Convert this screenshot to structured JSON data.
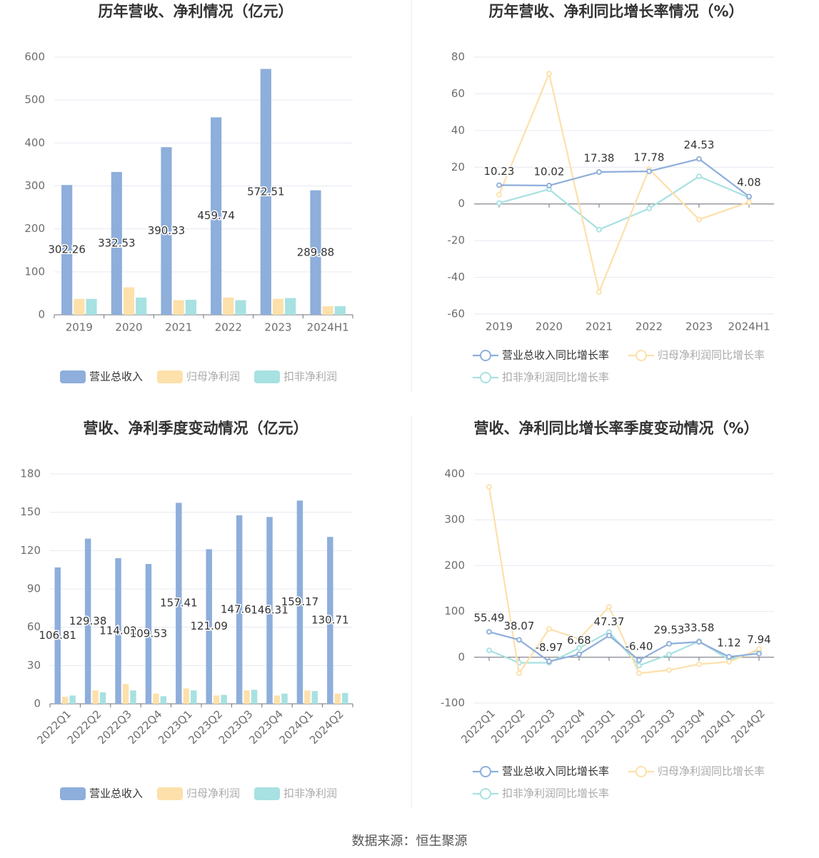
{
  "colors": {
    "revenue": "#8eaedb",
    "net_profit": "#fde0aa",
    "deducted_profit": "#a7e1e1",
    "title": "#333333",
    "axis_text": "#6e6e6e",
    "grid": "#e6e9f2"
  },
  "source": "数据来源：恒生聚源",
  "chart_data": [
    {
      "id": "annual_amounts",
      "type": "bar",
      "title": "历年营收、净利情况（亿元）",
      "categories": [
        "2019",
        "2020",
        "2021",
        "2022",
        "2023",
        "2024H1"
      ],
      "ylim": [
        0,
        600
      ],
      "yticks": [
        0,
        100,
        200,
        300,
        400,
        500,
        600
      ],
      "series": [
        {
          "name": "营业总收入",
          "color": "#8eaedb",
          "values": [
            302.26,
            332.53,
            390.33,
            459.74,
            572.51,
            289.88
          ],
          "labels": [
            "302.26",
            "332.53",
            "390.33",
            "459.74",
            "572.51",
            "289.88"
          ]
        },
        {
          "name": "归母净利润",
          "color": "#fde0aa",
          "values": [
            37,
            64,
            34,
            40,
            37,
            20
          ]
        },
        {
          "name": "扣非净利润",
          "color": "#a7e1e1",
          "values": [
            37,
            40,
            35,
            34,
            39,
            20
          ]
        }
      ],
      "legend_position": "bottom"
    },
    {
      "id": "annual_growth",
      "type": "line",
      "title": "历年营收、净利同比增长率情况（%）",
      "categories": [
        "2019",
        "2020",
        "2021",
        "2022",
        "2023",
        "2024H1"
      ],
      "ylim": [
        -60,
        80
      ],
      "yticks": [
        -60,
        -40,
        -20,
        0,
        20,
        40,
        60,
        80
      ],
      "series": [
        {
          "name": "营业总收入同比增长率",
          "color": "#8eaedb",
          "values": [
            10.23,
            10.02,
            17.38,
            17.78,
            24.53,
            4.08
          ],
          "labels": [
            "10.23",
            "10.02",
            "17.38",
            "17.78",
            "24.53",
            "4.08"
          ]
        },
        {
          "name": "归母净利润同比增长率",
          "color": "#fde0aa",
          "values": [
            5,
            71,
            -48,
            19,
            -8.5,
            1
          ]
        },
        {
          "name": "扣非净利润同比增长率",
          "color": "#a7e1e1",
          "values": [
            0.5,
            8,
            -14,
            -2.5,
            15,
            3.5
          ]
        }
      ],
      "legend_position": "bottom"
    },
    {
      "id": "quarterly_amounts",
      "type": "bar",
      "title": "营收、净利季度变动情况（亿元）",
      "categories": [
        "2022Q1",
        "2022Q2",
        "2022Q3",
        "2022Q4",
        "2023Q1",
        "2023Q2",
        "2023Q3",
        "2023Q4",
        "2024Q1",
        "2024Q2"
      ],
      "ylim": [
        0,
        180
      ],
      "yticks": [
        0,
        30,
        60,
        90,
        120,
        150,
        180
      ],
      "series": [
        {
          "name": "营业总收入",
          "color": "#8eaedb",
          "values": [
            106.81,
            129.38,
            114.02,
            109.53,
            157.41,
            121.09,
            147.61,
            146.31,
            159.17,
            130.71
          ],
          "labels": [
            "106.81",
            "129.38",
            "114.02",
            "109.53",
            "157.41",
            "121.09",
            "147.61",
            "146.31",
            "159.17",
            "130.71"
          ]
        },
        {
          "name": "归母净利润",
          "color": "#fde0aa",
          "values": [
            5.5,
            10.5,
            15.5,
            8,
            12,
            6.5,
            10.5,
            6.5,
            10.5,
            8
          ]
        },
        {
          "name": "扣非净利润",
          "color": "#a7e1e1",
          "values": [
            6.5,
            9,
            10.5,
            6,
            10.5,
            7,
            11,
            8,
            10,
            8.5
          ]
        }
      ],
      "legend_position": "bottom"
    },
    {
      "id": "quarterly_growth",
      "type": "line",
      "title": "营收、净利同比增长率季度变动情况（%）",
      "categories": [
        "2022Q1",
        "2022Q2",
        "2022Q3",
        "2022Q4",
        "2023Q1",
        "2023Q2",
        "2023Q3",
        "2023Q4",
        "2024Q1",
        "2024Q2"
      ],
      "ylim": [
        -100,
        400
      ],
      "yticks": [
        -100,
        0,
        100,
        200,
        300,
        400
      ],
      "series": [
        {
          "name": "营业总收入同比增长率",
          "color": "#8eaedb",
          "values": [
            55.49,
            38.07,
            -8.97,
            6.68,
            47.37,
            -6.4,
            29.53,
            33.58,
            1.12,
            7.94
          ],
          "labels": [
            "55.49",
            "38.07",
            "-8.97",
            "6.68",
            "47.37",
            "-6.40",
            "29.53",
            "33.58",
            "1.12",
            "7.94"
          ]
        },
        {
          "name": "归母净利润同比增长率",
          "color": "#fde0aa",
          "values": [
            372,
            -35,
            62,
            40,
            110,
            -35,
            -28,
            -15,
            -10,
            18
          ]
        },
        {
          "name": "扣非净利润同比增长率",
          "color": "#a7e1e1",
          "values": [
            15,
            -12,
            -12,
            20,
            55,
            -18,
            6,
            35,
            -5,
            15
          ]
        }
      ],
      "legend_position": "bottom"
    }
  ]
}
